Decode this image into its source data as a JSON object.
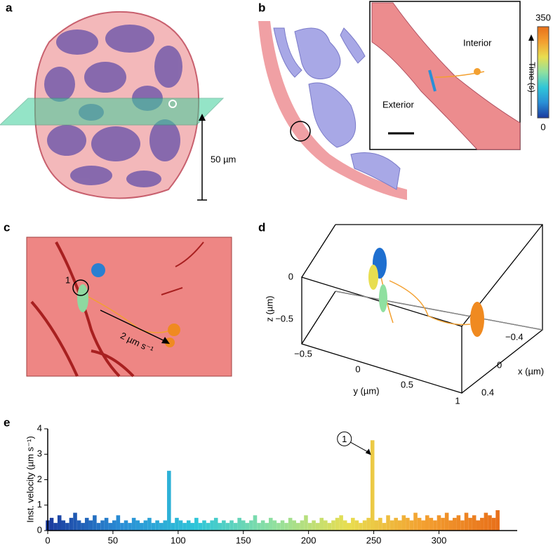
{
  "panels": {
    "a": {
      "label": "a",
      "scale": "50 µm"
    },
    "b": {
      "label": "b",
      "interior": "Interior",
      "exterior": "Exterior",
      "colorbar_label": "Time (s)",
      "colorbar_max": "350",
      "colorbar_min": "0"
    },
    "c": {
      "label": "c",
      "marker": "1",
      "speed": "2 µm s⁻¹"
    },
    "d": {
      "label": "d",
      "z_label": "z (µm)",
      "y_label": "y (µm)",
      "x_label": "x (µm)",
      "z_ticks": [
        "0",
        "−0.5"
      ],
      "y_ticks": [
        "−0.5",
        "0",
        "0.5",
        "1"
      ],
      "x_ticks": [
        "−0.4",
        "0",
        "0.4"
      ]
    },
    "e": {
      "label": "e"
    }
  },
  "chart_data": {
    "type": "bar",
    "ylabel": "Inst. velocity (µm s⁻¹)",
    "annotation": "1",
    "x": [
      0,
      3,
      6,
      9,
      12,
      15,
      18,
      21,
      24,
      27,
      30,
      33,
      36,
      39,
      42,
      45,
      48,
      51,
      54,
      57,
      60,
      63,
      66,
      69,
      72,
      75,
      78,
      81,
      84,
      87,
      90,
      93,
      96,
      99,
      102,
      105,
      108,
      111,
      114,
      117,
      120,
      123,
      126,
      129,
      132,
      135,
      138,
      141,
      144,
      147,
      150,
      153,
      156,
      159,
      162,
      165,
      168,
      171,
      174,
      177,
      180,
      183,
      186,
      189,
      192,
      195,
      198,
      201,
      204,
      207,
      210,
      213,
      216,
      219,
      222,
      225,
      228,
      231,
      234,
      237,
      240,
      243,
      246,
      249,
      252,
      255,
      258,
      261,
      264,
      267,
      270,
      273,
      276,
      279,
      282,
      285,
      288,
      291,
      294,
      297,
      300,
      303,
      306,
      309,
      312,
      315,
      318,
      321,
      324,
      327,
      330,
      333,
      336,
      339,
      342,
      345
    ],
    "values": [
      0.4,
      0.5,
      0.3,
      0.6,
      0.4,
      0.3,
      0.5,
      0.7,
      0.4,
      0.3,
      0.5,
      0.4,
      0.6,
      0.3,
      0.4,
      0.5,
      0.3,
      0.4,
      0.6,
      0.3,
      0.4,
      0.3,
      0.5,
      0.4,
      0.3,
      0.4,
      0.5,
      0.3,
      0.4,
      0.3,
      0.4,
      2.35,
      0.3,
      0.5,
      0.4,
      0.3,
      0.4,
      0.3,
      0.5,
      0.3,
      0.4,
      0.3,
      0.4,
      0.5,
      0.3,
      0.4,
      0.3,
      0.4,
      0.3,
      0.5,
      0.4,
      0.3,
      0.4,
      0.6,
      0.3,
      0.4,
      0.3,
      0.5,
      0.4,
      0.3,
      0.4,
      0.3,
      0.5,
      0.4,
      0.3,
      0.4,
      0.6,
      0.3,
      0.4,
      0.3,
      0.5,
      0.4,
      0.3,
      0.4,
      0.5,
      0.6,
      0.4,
      0.3,
      0.5,
      0.4,
      0.3,
      0.4,
      0.5,
      3.55,
      0.4,
      0.5,
      0.3,
      0.6,
      0.4,
      0.5,
      0.4,
      0.6,
      0.5,
      0.4,
      0.7,
      0.5,
      0.4,
      0.6,
      0.5,
      0.4,
      0.6,
      0.5,
      0.7,
      0.4,
      0.5,
      0.6,
      0.4,
      0.7,
      0.5,
      0.6,
      0.4,
      0.5,
      0.7,
      0.6,
      0.5,
      0.8
    ],
    "xlim": [
      0,
      360
    ],
    "ylim": [
      0,
      4
    ],
    "xticks": [
      0,
      50,
      100,
      150,
      200,
      250,
      300
    ],
    "yticks": [
      0,
      1,
      2,
      3,
      4
    ],
    "colors": [
      "#1b3a9e",
      "#2a8fd6",
      "#2fc6d8",
      "#8fe0a0",
      "#e8de50",
      "#f3a030",
      "#e8701a"
    ]
  }
}
